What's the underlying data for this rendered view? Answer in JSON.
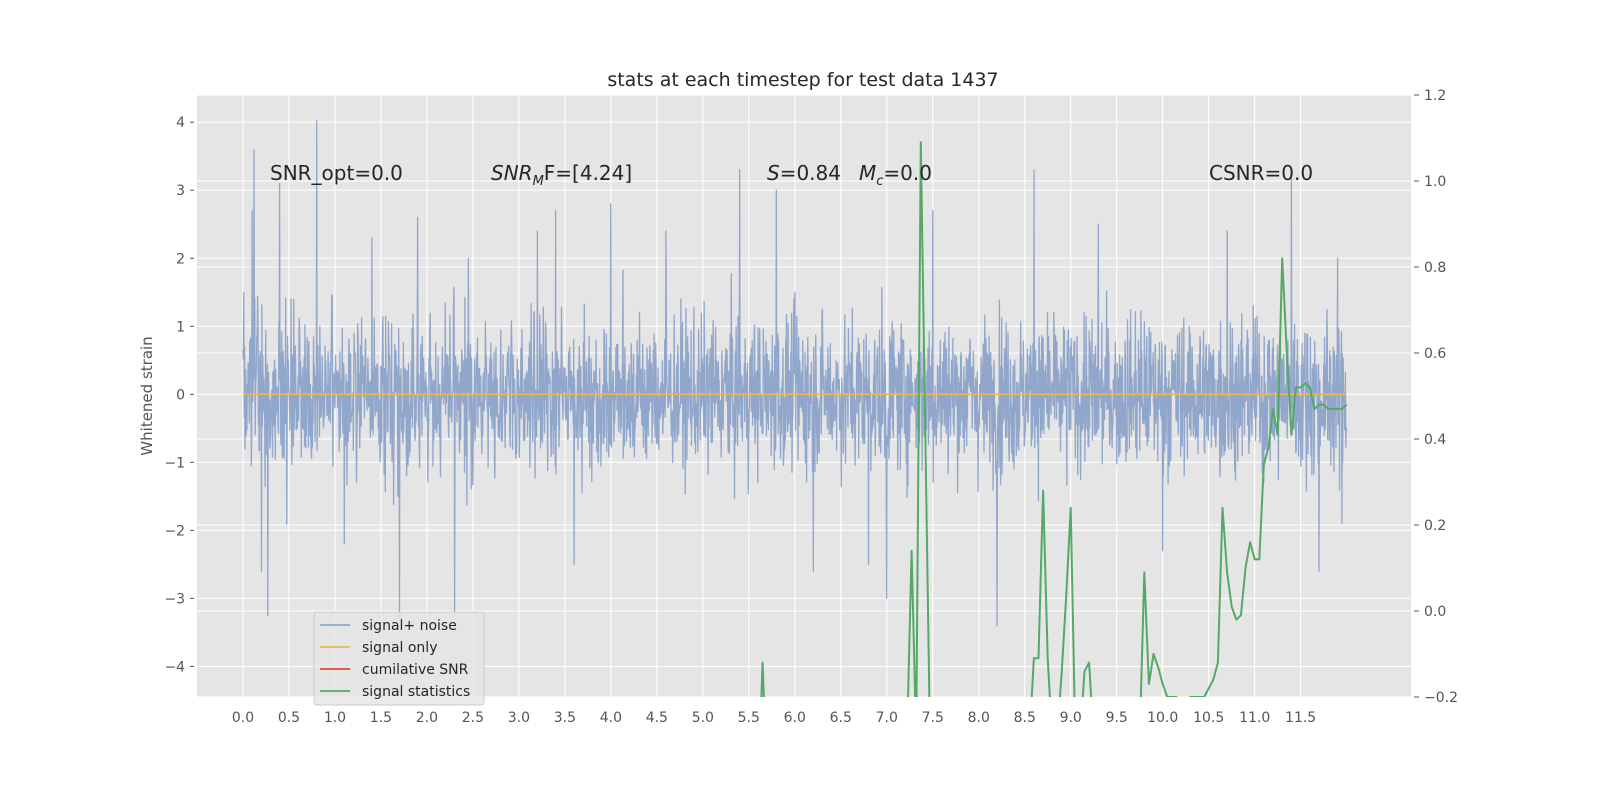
{
  "chart_data": {
    "type": "line",
    "title": "stats at each timestep for test data 1437",
    "ylabel": "Whitened strain",
    "xlim": [
      -0.5,
      12.7
    ],
    "ylim": [
      -4.45,
      4.4
    ],
    "y2lim": [
      -0.2,
      1.2
    ],
    "xticks": [
      "0.0",
      "0.5",
      "1.0",
      "1.5",
      "2.0",
      "2.5",
      "3.0",
      "3.5",
      "4.0",
      "4.5",
      "5.0",
      "5.5",
      "6.0",
      "6.5",
      "7.0",
      "7.5",
      "8.0",
      "8.5",
      "9.0",
      "9.5",
      "10.0",
      "10.5",
      "11.0",
      "11.5"
    ],
    "yticks": [
      "4",
      "3",
      "2",
      "1",
      "0",
      "−1",
      "−2",
      "−3",
      "−4"
    ],
    "y2ticks": [
      "1.2",
      "1.0",
      "0.8",
      "0.6",
      "0.4",
      "0.2",
      "0.0",
      "−0.2"
    ],
    "grid": true,
    "legend_position": "lower-left",
    "annotations": {
      "snr_opt": "SNR_opt=0.0",
      "snr_mf_main": "SNR",
      "snr_mf_sub": "M",
      "snr_mf_tail": "F=[4.24]",
      "s_main": "S",
      "s_tail": "=0.84",
      "mc_main": "M",
      "mc_sub": "c",
      "mc_tail": "=0.0",
      "csnr": "CSNR=0.0"
    },
    "series": [
      {
        "name": "signal+ noise",
        "color": "#91a6cb",
        "x_range": [
          0.0,
          12.0
        ],
        "y_envelope": {
          "typical": [
            -1.8,
            2.0
          ],
          "peak_max": 4.02,
          "peak_min": -3.3
        },
        "spikes": [
          [
            0.01,
            1.5
          ],
          [
            0.02,
            -0.8
          ],
          [
            0.12,
            3.6
          ],
          [
            0.1,
            2.7
          ],
          [
            0.2,
            -2.6
          ],
          [
            0.27,
            -3.25
          ],
          [
            0.4,
            3.1
          ],
          [
            0.8,
            4.02
          ],
          [
            1.1,
            -2.2
          ],
          [
            1.4,
            2.3
          ],
          [
            1.7,
            -3.3
          ],
          [
            1.9,
            2.6
          ],
          [
            2.3,
            -3.2
          ],
          [
            2.45,
            2.0
          ],
          [
            3.2,
            2.4
          ],
          [
            3.4,
            2.7
          ],
          [
            3.6,
            -2.5
          ],
          [
            4.0,
            2.8
          ],
          [
            4.6,
            2.4
          ],
          [
            5.4,
            3.3
          ],
          [
            5.8,
            3.0
          ],
          [
            6.0,
            1.5
          ],
          [
            6.2,
            -2.6
          ],
          [
            6.8,
            -2.5
          ],
          [
            7.0,
            -3.0
          ],
          [
            7.5,
            2.7
          ],
          [
            8.2,
            -3.4
          ],
          [
            8.6,
            3.3
          ],
          [
            9.3,
            2.5
          ],
          [
            10.0,
            -2.3
          ],
          [
            10.7,
            2.4
          ],
          [
            11.4,
            3.3
          ],
          [
            11.7,
            -2.6
          ],
          [
            11.9,
            2.0
          ],
          [
            11.95,
            -1.9
          ]
        ]
      },
      {
        "name": "signal only",
        "color": "#f0b64f",
        "x": [
          0.0,
          12.0
        ],
        "y": [
          0.0,
          0.0
        ]
      },
      {
        "name": "cumilative SNR",
        "color": "#e24a33",
        "x": [],
        "y": []
      },
      {
        "name": "signal statistics",
        "color": "#55a868",
        "axis": "right",
        "x": [
          5.62,
          5.65,
          5.68,
          7.22,
          7.27,
          7.32,
          7.37,
          7.42,
          7.47,
          8.55,
          8.6,
          8.65,
          8.7,
          8.75,
          8.8,
          8.85,
          8.9,
          8.95,
          9.0,
          9.05,
          9.1,
          9.15,
          9.2,
          9.25,
          9.75,
          9.8,
          9.85,
          9.9,
          9.95,
          10.0,
          10.05,
          10.1,
          10.15,
          10.2,
          10.25,
          10.3,
          10.35,
          10.4,
          10.45,
          10.5,
          10.55,
          10.6,
          10.65,
          10.7,
          10.75,
          10.8,
          10.85,
          10.9,
          10.95,
          11.0,
          11.05,
          11.1,
          11.15,
          11.2,
          11.25,
          11.3,
          11.35,
          11.4,
          11.45,
          11.5,
          11.55,
          11.6,
          11.65,
          11.7,
          11.75,
          11.8,
          11.85,
          11.9,
          11.95,
          12.0
        ],
        "y": [
          -0.3,
          -0.12,
          -0.3,
          -0.3,
          0.14,
          -0.3,
          1.09,
          0.4,
          -0.3,
          -0.3,
          -0.11,
          -0.11,
          0.28,
          -0.11,
          -0.3,
          -0.3,
          -0.15,
          0.03,
          0.24,
          -0.3,
          -0.3,
          -0.14,
          -0.12,
          -0.3,
          -0.3,
          0.09,
          -0.17,
          -0.1,
          -0.13,
          -0.17,
          -0.2,
          -0.2,
          -0.2,
          -0.3,
          -0.3,
          -0.2,
          -0.2,
          -0.2,
          -0.2,
          -0.18,
          -0.16,
          -0.12,
          0.24,
          0.09,
          0.01,
          -0.02,
          -0.01,
          0.1,
          0.16,
          0.12,
          0.12,
          0.34,
          0.38,
          0.47,
          0.41,
          0.82,
          0.6,
          0.41,
          0.52,
          0.52,
          0.53,
          0.52,
          0.47,
          0.48,
          0.48,
          0.47,
          0.47,
          0.47,
          0.47,
          0.48
        ]
      }
    ]
  }
}
